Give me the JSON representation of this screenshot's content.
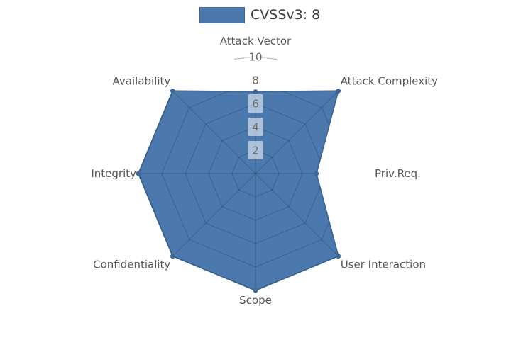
{
  "legend": {
    "label": "CVSSv3: 8",
    "swatch_fill": "#4b79ad",
    "swatch_border": "#3f6795"
  },
  "chart_data": {
    "type": "radar",
    "title": "CVSSv3: 8",
    "categories": [
      "Attack Vector",
      "Attack Complexity",
      "Priv.Req.",
      "User Interaction",
      "Scope",
      "Confidentiality",
      "Integrity",
      "Availability"
    ],
    "series": [
      {
        "name": "CVSSv3: 8",
        "values": [
          7,
          10,
          5.2,
          10,
          10,
          10,
          10,
          10
        ]
      }
    ],
    "rlim": [
      0,
      10
    ],
    "ticks": [
      2,
      4,
      6,
      8,
      10
    ],
    "grid": true,
    "legend_position": "top-center",
    "start_axis": "top",
    "direction": "clockwise",
    "fill_color": "#4b79ad",
    "line_color": "#3f6795",
    "inner_grid_color": "#0c1826",
    "outer_grid_color": "#9b9b9b",
    "tick_box_color": "#ffffff",
    "label_color": "#585858",
    "tick_color": "#696969"
  }
}
